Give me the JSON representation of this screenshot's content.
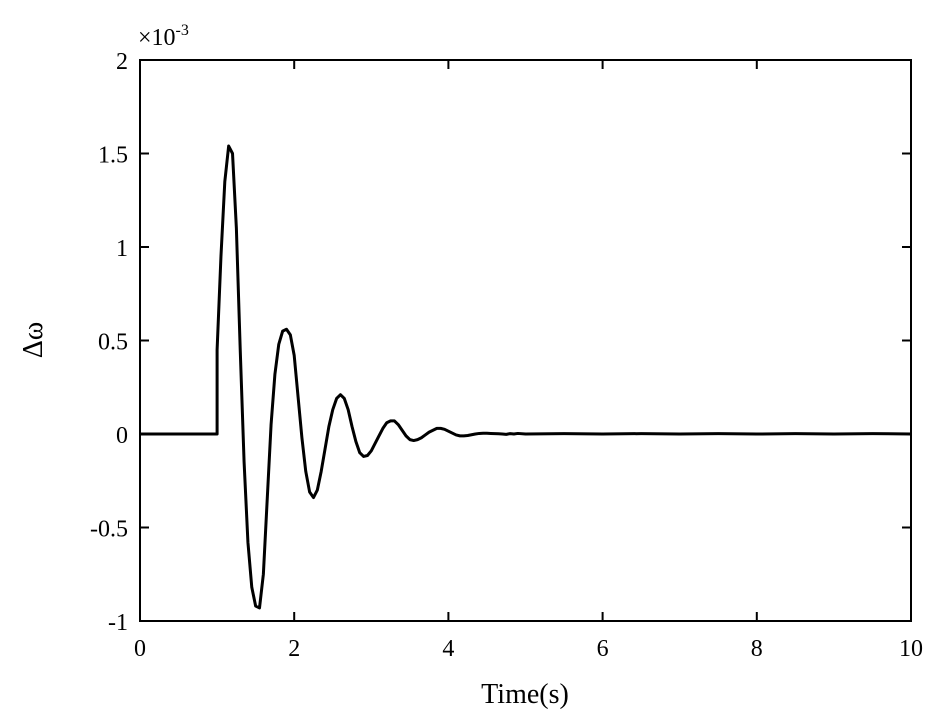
{
  "chart_data": {
    "type": "line",
    "title": "",
    "xlabel": "Time(s)",
    "ylabel": "Δω",
    "y_exponent_label": "×10",
    "y_exponent_power": "-3",
    "xlim": [
      0,
      10
    ],
    "ylim": [
      -1,
      2
    ],
    "x_ticks": [
      0,
      2,
      4,
      6,
      8,
      10
    ],
    "x_tick_labels": [
      "0",
      "2",
      "4",
      "6",
      "8",
      "10"
    ],
    "y_ticks": [
      -1,
      -0.5,
      0,
      0.5,
      1,
      1.5,
      2
    ],
    "y_tick_labels": [
      "-1",
      "-0.5",
      "0",
      "0.5",
      "1",
      "1.5",
      "2"
    ],
    "grid": false,
    "line_color": "#000000",
    "series": [
      {
        "x": [
          0,
          1.0,
          1.0,
          1.05,
          1.1,
          1.15,
          1.2,
          1.25,
          1.3,
          1.35,
          1.4,
          1.45,
          1.5,
          1.55,
          1.6,
          1.65,
          1.7,
          1.75,
          1.8,
          1.85,
          1.9,
          1.95,
          2.0,
          2.05,
          2.1,
          2.15,
          2.2,
          2.25,
          2.3,
          2.35,
          2.4,
          2.45,
          2.5,
          2.55,
          2.6,
          2.65,
          2.7,
          2.75,
          2.8,
          2.85,
          2.9,
          2.95,
          3.0,
          3.05,
          3.1,
          3.15,
          3.2,
          3.25,
          3.3,
          3.35,
          3.4,
          3.45,
          3.5,
          3.55,
          3.6,
          3.65,
          3.7,
          3.75,
          3.8,
          3.85,
          3.9,
          3.95,
          4.0,
          4.05,
          4.1,
          4.15,
          4.2,
          4.25,
          4.3,
          4.35,
          4.4,
          4.45,
          4.5,
          4.55,
          4.6,
          4.65,
          4.7,
          4.75,
          4.8,
          4.85,
          4.9,
          5.0,
          5.5,
          6.0,
          6.5,
          7.0,
          7.5,
          8.0,
          8.5,
          9.0,
          9.5,
          10.0
        ],
        "y": [
          0,
          0,
          0.45,
          0.95,
          1.35,
          1.54,
          1.5,
          1.1,
          0.45,
          -0.15,
          -0.58,
          -0.82,
          -0.92,
          -0.93,
          -0.75,
          -0.35,
          0.05,
          0.32,
          0.48,
          0.55,
          0.56,
          0.53,
          0.42,
          0.2,
          -0.02,
          -0.2,
          -0.31,
          -0.34,
          -0.3,
          -0.2,
          -0.08,
          0.04,
          0.13,
          0.19,
          0.21,
          0.19,
          0.13,
          0.04,
          -0.04,
          -0.1,
          -0.12,
          -0.115,
          -0.09,
          -0.05,
          -0.01,
          0.03,
          0.06,
          0.07,
          0.07,
          0.05,
          0.02,
          -0.01,
          -0.03,
          -0.035,
          -0.03,
          -0.02,
          -0.005,
          0.01,
          0.02,
          0.03,
          0.03,
          0.025,
          0.015,
          0.005,
          -0.005,
          -0.01,
          -0.01,
          -0.008,
          -0.004,
          0.0,
          0.003,
          0.004,
          0.004,
          0.003,
          0.002,
          0.001,
          0.0,
          -0.002,
          0.002,
          0,
          0.003,
          0,
          0.002,
          0,
          0.002,
          0,
          0.002,
          0,
          0.002,
          0,
          0.002,
          0
        ]
      }
    ]
  }
}
